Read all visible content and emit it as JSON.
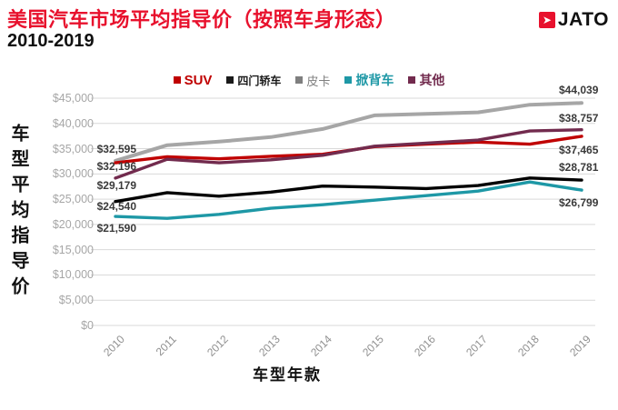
{
  "header": {
    "title": "美国汽车市场平均指导价（按照车身形态）",
    "subtitle": "2010-2019",
    "logo_text": "JATO",
    "logo_arrow": "➤"
  },
  "colors": {
    "title_red": "#E8112D",
    "grid": "#D9D9D9",
    "tick_text": "#A6A6A6",
    "label_text": "#3a3a3a"
  },
  "legend": [
    {
      "label": "SUV",
      "color": "#C00000",
      "font_size": 15,
      "bold": true
    },
    {
      "label": "四门轿车",
      "color": "#1a1a1a",
      "font_size": 12,
      "bold": true
    },
    {
      "label": "皮卡",
      "color": "#7f7f7f",
      "font_size": 13,
      "bold": false
    },
    {
      "label": "掀背车",
      "color": "#1E98A6",
      "font_size": 14,
      "bold": true
    },
    {
      "label": "其他",
      "color": "#722B4E",
      "font_size": 14,
      "bold": true
    }
  ],
  "axes": {
    "y_title": "车型平均指导价",
    "x_title": "车型年款",
    "y_ticks": [
      "$45,000",
      "$40,000",
      "$35,000",
      "$30,000",
      "$25,000",
      "$20,000",
      "$15,000",
      "$10,000",
      "$5,000",
      "$0"
    ]
  },
  "chart_data": {
    "type": "line",
    "title": "美国汽车市场平均指导价（按照车身形态）2010-2019",
    "xlabel": "车型年款",
    "ylabel": "车型平均指导价",
    "x": [
      2010,
      2011,
      2012,
      2013,
      2014,
      2015,
      2016,
      2017,
      2018,
      2019
    ],
    "ylim": [
      0,
      45000
    ],
    "grid": true,
    "legend_position": "top",
    "series": [
      {
        "name": "SUV",
        "color": "#C00000",
        "stroke": 3.4,
        "values": [
          32196,
          33400,
          33000,
          33500,
          33900,
          35400,
          35900,
          36300,
          35900,
          37465
        ],
        "start_label": "$32,196",
        "end_label": "$37,465",
        "start_offset": 4,
        "end_offset": 15
      },
      {
        "name": "四门轿车",
        "color": "#000000",
        "stroke": 3.4,
        "values": [
          24540,
          26300,
          25600,
          26400,
          27600,
          27400,
          27100,
          27700,
          29200,
          28781
        ],
        "start_label": "$24,540",
        "end_label": "$28,781",
        "start_offset": 5,
        "end_offset": -14
      },
      {
        "name": "皮卡",
        "color": "#A6A6A6",
        "stroke": 4,
        "values": [
          32595,
          35700,
          36400,
          37300,
          38900,
          41600,
          41900,
          42200,
          43700,
          44039
        ],
        "start_label": "$32,595",
        "end_label": "$44,039",
        "start_offset": -13,
        "end_offset": -14
      },
      {
        "name": "掀背车",
        "color": "#1E98A6",
        "stroke": 3.4,
        "values": [
          21590,
          21200,
          22000,
          23200,
          23900,
          24800,
          25700,
          26600,
          28400,
          26799
        ],
        "start_label": "$21,590",
        "end_label": "$26,799",
        "start_offset": 13,
        "end_offset": 14
      },
      {
        "name": "其他",
        "color": "#722B4E",
        "stroke": 3.4,
        "values": [
          29179,
          32900,
          32200,
          32800,
          33700,
          35500,
          36100,
          36700,
          38500,
          38757
        ],
        "start_label": "$29,179",
        "end_label": "$38,757",
        "start_offset": 8,
        "end_offset": -13
      }
    ]
  }
}
